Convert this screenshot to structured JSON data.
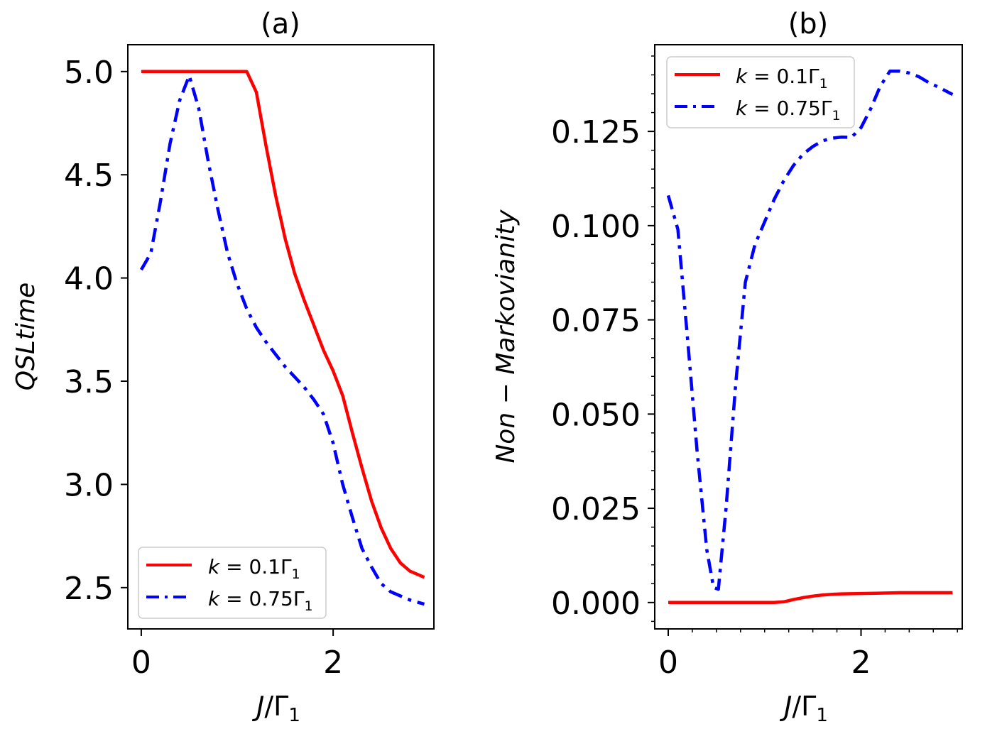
{
  "colors": {
    "red": "#ff0000",
    "blue": "#0000ff",
    "axis": "#000000"
  },
  "chart_data": [
    {
      "type": "line",
      "title": "(a)",
      "xlabel": "J/Γ₁",
      "ylabel": "QSLtime",
      "xlim": [
        -0.14,
        3.05
      ],
      "ylim": [
        2.3,
        5.13
      ],
      "xticks": [
        0,
        2
      ],
      "xtick_labels": [
        "0",
        "2"
      ],
      "yticks": [
        2.5,
        3.0,
        3.5,
        4.0,
        4.5,
        5.0
      ],
      "ytick_labels": [
        "2.5",
        "3.0",
        "3.5",
        "4.0",
        "4.5",
        "5.0"
      ],
      "legend_position": "lower-left",
      "series": [
        {
          "name": "k = 0.1Γ₁",
          "legend_k": "k",
          "legend_value": " = 0.1Γ",
          "legend_sub": "1",
          "color": "#ff0000",
          "style": "solid",
          "x": [
            0,
            0.2,
            0.4,
            0.6,
            0.8,
            1.0,
            1.1,
            1.2,
            1.3,
            1.4,
            1.5,
            1.6,
            1.7,
            1.8,
            1.9,
            2.0,
            2.1,
            2.2,
            2.3,
            2.4,
            2.5,
            2.6,
            2.7,
            2.8,
            2.95
          ],
          "y": [
            5.0,
            5.0,
            5.0,
            5.0,
            5.0,
            5.0,
            5.0,
            4.9,
            4.64,
            4.4,
            4.19,
            4.02,
            3.89,
            3.77,
            3.65,
            3.55,
            3.43,
            3.25,
            3.08,
            2.92,
            2.79,
            2.69,
            2.62,
            2.58,
            2.55
          ]
        },
        {
          "name": "k = 0.75Γ₁",
          "legend_k": "k",
          "legend_value": " = 0.75Γ",
          "legend_sub": "1",
          "color": "#0000ff",
          "style": "dashdot",
          "x": [
            0,
            0.1,
            0.2,
            0.3,
            0.4,
            0.5,
            0.6,
            0.7,
            0.8,
            0.9,
            1.0,
            1.1,
            1.2,
            1.3,
            1.4,
            1.5,
            1.6,
            1.7,
            1.8,
            1.9,
            2.0,
            2.1,
            2.2,
            2.3,
            2.4,
            2.5,
            2.6,
            2.7,
            2.8,
            2.95
          ],
          "y": [
            4.04,
            4.12,
            4.37,
            4.65,
            4.86,
            4.98,
            4.82,
            4.56,
            4.33,
            4.12,
            3.97,
            3.85,
            3.76,
            3.69,
            3.63,
            3.57,
            3.52,
            3.47,
            3.41,
            3.34,
            3.2,
            3.0,
            2.84,
            2.69,
            2.6,
            2.52,
            2.48,
            2.46,
            2.44,
            2.42
          ]
        }
      ]
    },
    {
      "type": "line",
      "title": "(b)",
      "xlabel": "J/Γ₁",
      "ylabel": "Non − Markovianity",
      "xlim": [
        -0.14,
        3.05
      ],
      "ylim": [
        -0.007,
        0.148
      ],
      "xticks": [
        0,
        2
      ],
      "xtick_labels": [
        "0",
        "2"
      ],
      "yticks": [
        0.0,
        0.025,
        0.05,
        0.075,
        0.1,
        0.125
      ],
      "ytick_labels": [
        "0.000",
        "0.025",
        "0.050",
        "0.075",
        "0.100",
        "0.125"
      ],
      "legend_position": "upper-left",
      "series": [
        {
          "name": "k = 0.1Γ₁",
          "legend_k": "k",
          "legend_value": " = 0.1Γ",
          "legend_sub": "1",
          "color": "#ff0000",
          "style": "solid",
          "x": [
            0,
            0.5,
            1.0,
            1.1,
            1.2,
            1.3,
            1.4,
            1.5,
            1.6,
            1.7,
            1.8,
            2.0,
            2.2,
            2.4,
            2.6,
            2.95
          ],
          "y": [
            0.0,
            0.0,
            0.0,
            0.0,
            0.0002,
            0.0008,
            0.0013,
            0.0017,
            0.002,
            0.0022,
            0.0023,
            0.0024,
            0.0025,
            0.0026,
            0.0026,
            0.0026
          ]
        },
        {
          "name": "k = 0.75Γ₁",
          "legend_k": "k",
          "legend_value": " = 0.75Γ",
          "legend_sub": "1",
          "color": "#0000ff",
          "style": "dashdot",
          "x": [
            0,
            0.1,
            0.2,
            0.3,
            0.4,
            0.47,
            0.52,
            0.6,
            0.7,
            0.8,
            0.9,
            1.0,
            1.1,
            1.2,
            1.3,
            1.4,
            1.5,
            1.6,
            1.7,
            1.8,
            1.9,
            2.0,
            2.1,
            2.2,
            2.3,
            2.4,
            2.5,
            2.6,
            2.7,
            2.8,
            2.95
          ],
          "y": [
            0.108,
            0.099,
            0.07,
            0.04,
            0.014,
            0.004,
            0.0035,
            0.025,
            0.058,
            0.085,
            0.095,
            0.101,
            0.107,
            0.112,
            0.116,
            0.119,
            0.121,
            0.1225,
            0.1232,
            0.1235,
            0.1234,
            0.126,
            0.131,
            0.137,
            0.141,
            0.141,
            0.1405,
            0.1395,
            0.138,
            0.1368,
            0.1348
          ]
        }
      ]
    }
  ]
}
